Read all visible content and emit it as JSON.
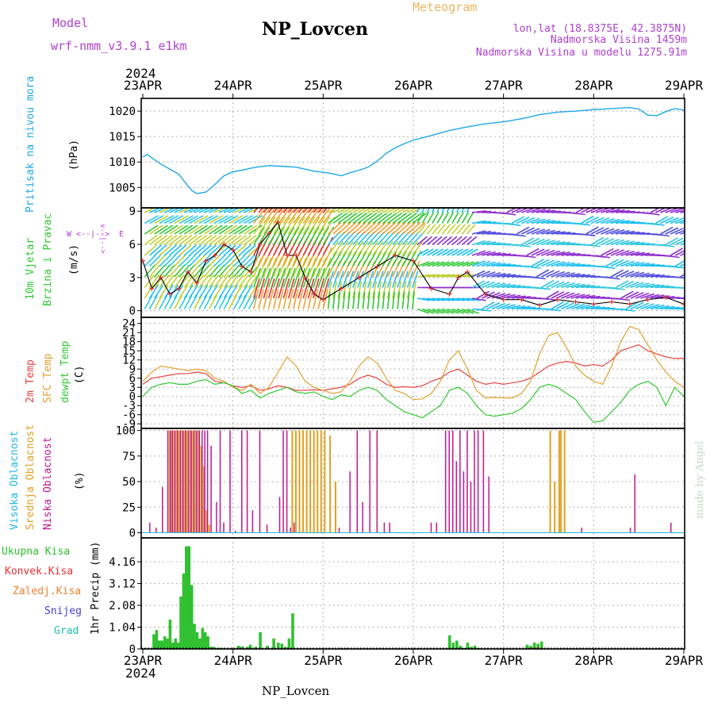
{
  "header": {
    "model_label": "Model",
    "model_name": "wrf-nmm_v3.9.1  e1km",
    "station": "NP_Lovcen",
    "meteogram": "Meteogram",
    "coords": "lon,lat (18.8375E, 42.3875N)",
    "altitude": "Nadmorska Visina 1459m",
    "model_altitude": "Nadmorska Visina u modelu 1275.91m"
  },
  "footer": {
    "station": "NP_Lovcen",
    "credit": "made by Angel"
  },
  "time_axis": {
    "year": "2024",
    "labels": [
      "23APR",
      "24APR",
      "25APR",
      "26APR",
      "27APR",
      "28APR",
      "29APR"
    ]
  },
  "colors": {
    "pressure": "#1ea8e8",
    "temp2m": "#e84040",
    "sfc": "#e0a030",
    "dew": "#30c830",
    "high_cloud": "#20b8e0",
    "mid_cloud": "#e0a020",
    "low_cloud": "#c01890",
    "total_precip": "#30c030",
    "conv_precip": "#e83030",
    "frozen_precip": "#f08030",
    "snow": "#4040e0",
    "hail": "#20c0b0",
    "wind_label": "#30c030",
    "model_text": "#b040d0"
  },
  "chart_data": [
    {
      "type": "line",
      "id": "pressure",
      "ylabel_left": "Pritisak na nivou mora",
      "unit": "(hPa)",
      "yticks": [
        1005,
        1010,
        1015,
        1020
      ],
      "ylim": [
        1001,
        1022.5
      ],
      "x_days": [
        0,
        0.05,
        0.1,
        0.2,
        0.3,
        0.4,
        0.5,
        0.55,
        0.6,
        0.7,
        0.8,
        0.9,
        1.0,
        1.1,
        1.2,
        1.3,
        1.4,
        1.5,
        1.6,
        1.7,
        1.8,
        1.9,
        2.0,
        2.1,
        2.2,
        2.3,
        2.4,
        2.5,
        2.6,
        2.7,
        2.8,
        2.9,
        3.0,
        3.2,
        3.4,
        3.6,
        3.8,
        4.0,
        4.2,
        4.4,
        4.6,
        4.8,
        5.0,
        5.2,
        5.4,
        5.5,
        5.6,
        5.7,
        5.8,
        5.9,
        6.0
      ],
      "values": [
        1011,
        1011.5,
        1010.8,
        1009.6,
        1008.6,
        1007.6,
        1005.3,
        1004.3,
        1003.8,
        1004.1,
        1005.6,
        1007.3,
        1008.1,
        1008.4,
        1008.8,
        1009.1,
        1009.3,
        1009.2,
        1009.1,
        1009.0,
        1008.6,
        1008.2,
        1008.0,
        1007.7,
        1007.3,
        1007.9,
        1008.4,
        1009.0,
        1010.2,
        1011.7,
        1012.8,
        1013.6,
        1014.3,
        1015.2,
        1016.2,
        1016.9,
        1017.5,
        1017.9,
        1018.5,
        1019.3,
        1019.8,
        1020.0,
        1020.3,
        1020.5,
        1020.7,
        1020.4,
        1019.2,
        1019.1,
        1019.9,
        1020.5,
        1020.2
      ],
      "series": [
        {
          "name": "Pritisak na nivou mora"
        }
      ]
    },
    {
      "type": "scatter",
      "id": "wind",
      "ylabel_left": "10m Vjetar Brzina i Pravac",
      "unit": "(m/s)",
      "compass": {
        "n": "N",
        "w": "W",
        "e": "E",
        "s": "S"
      },
      "yticks": [
        0,
        3,
        6,
        9
      ],
      "ylim": [
        -0.6,
        9.3
      ],
      "x_days": [
        0,
        0.1,
        0.2,
        0.3,
        0.4,
        0.5,
        0.6,
        0.7,
        0.8,
        0.9,
        1.0,
        1.1,
        1.2,
        1.3,
        1.4,
        1.5,
        1.6,
        1.7,
        1.8,
        1.9,
        2.0,
        2.2,
        2.4,
        2.6,
        2.8,
        3.0,
        3.2,
        3.4,
        3.5,
        3.6,
        3.8,
        4.0,
        4.2,
        4.4,
        4.6,
        4.8,
        5.0,
        5.2,
        5.4,
        5.6,
        5.8,
        6.0
      ],
      "speed": [
        4.5,
        2,
        3,
        1.5,
        2,
        3.5,
        2.5,
        4.5,
        5,
        6,
        5.5,
        4,
        3.5,
        6,
        7,
        8,
        5,
        5,
        3,
        1.5,
        1,
        2,
        3,
        4,
        5,
        4.5,
        2,
        1.5,
        3,
        3.5,
        1.5,
        1,
        1,
        0.5,
        1,
        0.8,
        0.6,
        0.8,
        0.6,
        1,
        1.2,
        0.6
      ]
    },
    {
      "type": "line",
      "id": "temperature",
      "ylabels_left": [
        "2m Temp",
        "SFC Temp",
        "dewpt Temp"
      ],
      "unit": "(C)",
      "yticks": [
        -9,
        -6,
        -3,
        0,
        3,
        6,
        9,
        12,
        15,
        18,
        21,
        24
      ],
      "ylim": [
        -10.5,
        26
      ],
      "x_days": [
        0,
        0.1,
        0.2,
        0.3,
        0.4,
        0.5,
        0.6,
        0.7,
        0.8,
        0.9,
        1.0,
        1.1,
        1.2,
        1.3,
        1.4,
        1.5,
        1.6,
        1.7,
        1.8,
        1.9,
        2.0,
        2.1,
        2.2,
        2.3,
        2.4,
        2.5,
        2.6,
        2.7,
        2.8,
        2.9,
        3.0,
        3.1,
        3.2,
        3.3,
        3.4,
        3.5,
        3.6,
        3.7,
        3.8,
        3.9,
        4.0,
        4.1,
        4.2,
        4.3,
        4.4,
        4.5,
        4.6,
        4.7,
        4.8,
        4.9,
        5.0,
        5.1,
        5.2,
        5.3,
        5.4,
        5.5,
        5.6,
        5.7,
        5.8,
        5.9,
        6.0
      ],
      "series": [
        {
          "name": "2m Temp",
          "values": [
            4,
            6,
            6.5,
            7,
            7.5,
            7.5,
            8,
            7.5,
            5,
            4.5,
            3.5,
            3,
            3.5,
            2,
            2.5,
            3.5,
            3,
            2,
            2,
            2.2,
            2,
            2.5,
            3,
            4,
            6,
            7,
            6,
            4,
            3,
            3.2,
            3,
            3.5,
            5,
            6,
            8,
            9,
            7,
            5,
            4,
            4.5,
            4,
            4.5,
            5,
            6,
            8,
            10,
            11,
            11.5,
            11,
            10,
            10.5,
            10,
            12,
            15,
            16,
            17,
            15,
            14,
            13,
            12.5,
            12.5
          ]
        },
        {
          "name": "SFC Temp",
          "values": [
            5,
            8,
            10,
            9.5,
            9,
            8.5,
            9,
            8.5,
            6,
            5,
            3,
            2,
            4,
            1,
            3,
            8,
            13,
            10,
            5,
            3,
            2,
            1,
            1.5,
            5,
            10,
            13,
            11,
            6,
            2,
            1,
            -1,
            -0.8,
            1,
            5,
            12,
            15,
            9,
            2,
            -0.5,
            -0.3,
            -0.5,
            -0.5,
            1,
            5,
            14,
            20,
            21,
            16,
            10,
            7,
            5,
            4,
            10,
            18,
            23,
            22,
            17,
            12,
            8,
            5,
            3
          ]
        },
        {
          "name": "dewpt Temp",
          "values": [
            0,
            3,
            4,
            4.5,
            4,
            4,
            5,
            5.5,
            4,
            4.5,
            3.5,
            1,
            2,
            -0.5,
            1,
            2,
            3,
            1.5,
            1,
            1.5,
            0,
            -1,
            0.5,
            0,
            2,
            3,
            2,
            -1,
            -3,
            -5,
            -6,
            -7,
            -5,
            -3,
            2,
            3,
            1,
            -3,
            -6,
            -6.5,
            -6,
            -5.5,
            -4,
            -1,
            3,
            4,
            3,
            1,
            -1,
            -5,
            -8.5,
            -8,
            -5,
            -2,
            2,
            4,
            5,
            3,
            -3,
            3,
            0
          ]
        }
      ]
    },
    {
      "type": "bar",
      "id": "cloud",
      "ylabels_left": [
        "Visoka Oblacnost",
        "Srednja Oblacnost",
        "Niska Oblacnost"
      ],
      "unit": "(%)",
      "yticks": [
        0,
        25,
        50,
        75,
        100
      ],
      "ylim": [
        -5,
        102
      ],
      "x_days": [
        0.08,
        0.15,
        0.22,
        0.28,
        0.31,
        0.33,
        0.36,
        0.39,
        0.42,
        0.45,
        0.48,
        0.51,
        0.54,
        0.57,
        0.6,
        0.63,
        0.66,
        0.69,
        0.72,
        0.76,
        0.82,
        0.86,
        0.9,
        0.97,
        1.03,
        1.1,
        1.16,
        1.22,
        1.3,
        1.38,
        1.52,
        1.56,
        1.6,
        1.64,
        1.68,
        1.72,
        1.76,
        1.8,
        1.84,
        1.88,
        1.92,
        1.96,
        2.0,
        2.06,
        2.12,
        2.18,
        2.3,
        2.38,
        2.44,
        2.52,
        2.6,
        2.68,
        2.74,
        3.2,
        3.26,
        3.36,
        3.4,
        3.44,
        3.48,
        3.52,
        3.56,
        3.6,
        3.64,
        3.68,
        3.72,
        3.78,
        3.84,
        4.5,
        4.55,
        4.6,
        4.62,
        4.66
      ],
      "series": [
        {
          "name": "Niska Oblacnost",
          "values": [
            10,
            5,
            45,
            100,
            100,
            100,
            100,
            100,
            100,
            100,
            100,
            100,
            100,
            100,
            100,
            100,
            100,
            100,
            100,
            85,
            30,
            100,
            10,
            100,
            2,
            100,
            100,
            22,
            100,
            8,
            35,
            100,
            100,
            5,
            10,
            0,
            0,
            0,
            0,
            0,
            0,
            0,
            0,
            0,
            0,
            5,
            60,
            100,
            30,
            100,
            100,
            10,
            10,
            10,
            10,
            100,
            100,
            100,
            70,
            100,
            60,
            100,
            50,
            100,
            100,
            100,
            55,
            0,
            0,
            0,
            0,
            0
          ]
        },
        {
          "name": "Srednja Oblacnost",
          "values": [
            0,
            0,
            0,
            100,
            100,
            100,
            100,
            100,
            100,
            100,
            100,
            100,
            100,
            100,
            100,
            85,
            65,
            22,
            8,
            0,
            0,
            0,
            0,
            0,
            0,
            0,
            0,
            0,
            0,
            0,
            0,
            0,
            0,
            100,
            100,
            100,
            100,
            100,
            100,
            100,
            100,
            100,
            100,
            95,
            50,
            0,
            0,
            0,
            0,
            0,
            0,
            0,
            0,
            0,
            0,
            0,
            0,
            0,
            0,
            0,
            0,
            0,
            0,
            0,
            0,
            0,
            0,
            100,
            50,
            100,
            100,
            100
          ]
        },
        {
          "name": "Visoka Oblacnost",
          "values": [
            0,
            0,
            0,
            0,
            0,
            0,
            0,
            0,
            0,
            0,
            0,
            0,
            0,
            0,
            0,
            0,
            0,
            0,
            0,
            0,
            0,
            0,
            0,
            0,
            0,
            0,
            0,
            0,
            0,
            0,
            0,
            0,
            0,
            0,
            0,
            0,
            0,
            0,
            0,
            0,
            0,
            0,
            0,
            0,
            0,
            0,
            0,
            0,
            0,
            0,
            0,
            0,
            0,
            0,
            0,
            0,
            0,
            0,
            0,
            0,
            0,
            0,
            0,
            0,
            0,
            0,
            0,
            0,
            0,
            0,
            0,
            0
          ]
        }
      ],
      "extra_low": [
        {
          "x": 4.86,
          "value": 5
        },
        {
          "x": 5.45,
          "value": 57
        },
        {
          "x": 5.4,
          "value": 5
        },
        {
          "x": 5.85,
          "value": 10
        }
      ]
    },
    {
      "type": "bar",
      "id": "precip",
      "ylabels_left": [
        "Ukupna Kisa",
        "Konvek.Kisa",
        "Zaledj.Kisa",
        "Snijeg",
        "Grad"
      ],
      "unit": "1hr Precip (mm)",
      "yticks": [
        0,
        1.04,
        2.08,
        3.12,
        4.16
      ],
      "ylim": [
        0,
        5.3
      ],
      "x_days": [
        0.12,
        0.15,
        0.18,
        0.21,
        0.24,
        0.27,
        0.3,
        0.33,
        0.36,
        0.39,
        0.42,
        0.45,
        0.48,
        0.51,
        0.54,
        0.57,
        0.6,
        0.63,
        0.66,
        0.69,
        0.72,
        0.75,
        0.78,
        0.81,
        0.84,
        0.87,
        1.0,
        1.06,
        1.1,
        1.16,
        1.19,
        1.25,
        1.3,
        1.38,
        1.45,
        1.5,
        1.54,
        1.58,
        1.62,
        1.66,
        2.2,
        2.25,
        3.4,
        3.44,
        3.48,
        3.52,
        3.56,
        3.6,
        3.64,
        3.68,
        3.72,
        4.26,
        4.3,
        4.34,
        4.38,
        4.42
      ],
      "values": [
        0.7,
        0.9,
        0.4,
        0.4,
        0.6,
        0.5,
        1.4,
        0.3,
        0.5,
        0.3,
        2.5,
        3.6,
        4.9,
        4.9,
        3.05,
        1.2,
        0.8,
        0.5,
        1.0,
        0.8,
        0.6,
        0.1,
        0.1,
        0.05,
        0.05,
        0.05,
        0.05,
        0.15,
        0.12,
        0.1,
        0.2,
        0.1,
        0.8,
        0.15,
        0.5,
        0.3,
        0.25,
        0.1,
        0.5,
        1.7,
        0.05,
        0.05,
        0.65,
        0.3,
        0.4,
        0.15,
        0.05,
        0.3,
        0.1,
        0.15,
        0.05,
        0.2,
        0.15,
        0.3,
        0.25,
        0.35
      ]
    }
  ]
}
